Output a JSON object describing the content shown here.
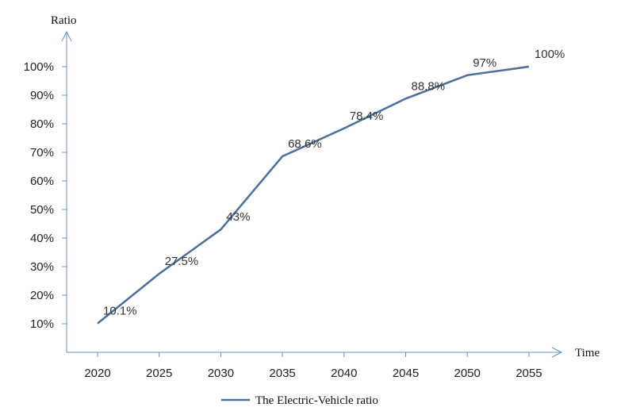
{
  "chart_data": {
    "type": "line",
    "x": [
      2020,
      2025,
      2030,
      2035,
      2040,
      2045,
      2050,
      2055
    ],
    "series": [
      {
        "name": "The Electric-Vehicle ratio",
        "values": [
          10.1,
          27.5,
          43,
          68.6,
          78.4,
          88.8,
          97,
          100
        ],
        "labels": [
          "10.1%",
          "27.5%",
          "43%",
          "68.6%",
          "78.4%",
          "88.8%",
          "97%",
          "100%"
        ],
        "color": "#4a6f9a"
      }
    ],
    "xlabel": "Time",
    "ylabel": "Ratio",
    "x_tick_labels": [
      "2020",
      "2025",
      "2030",
      "2035",
      "2040",
      "2045",
      "2050",
      "2055"
    ],
    "y_ticks": [
      10,
      20,
      30,
      40,
      50,
      60,
      70,
      80,
      90,
      100
    ],
    "y_tick_labels": [
      "10%",
      "20%",
      "30%",
      "40%",
      "50%",
      "60%",
      "70%",
      "80%",
      "90%",
      "100%"
    ],
    "ylim": [
      0,
      100
    ],
    "grid": false,
    "legend_position": "bottom-center",
    "axis_color": "#6b8fc4"
  }
}
